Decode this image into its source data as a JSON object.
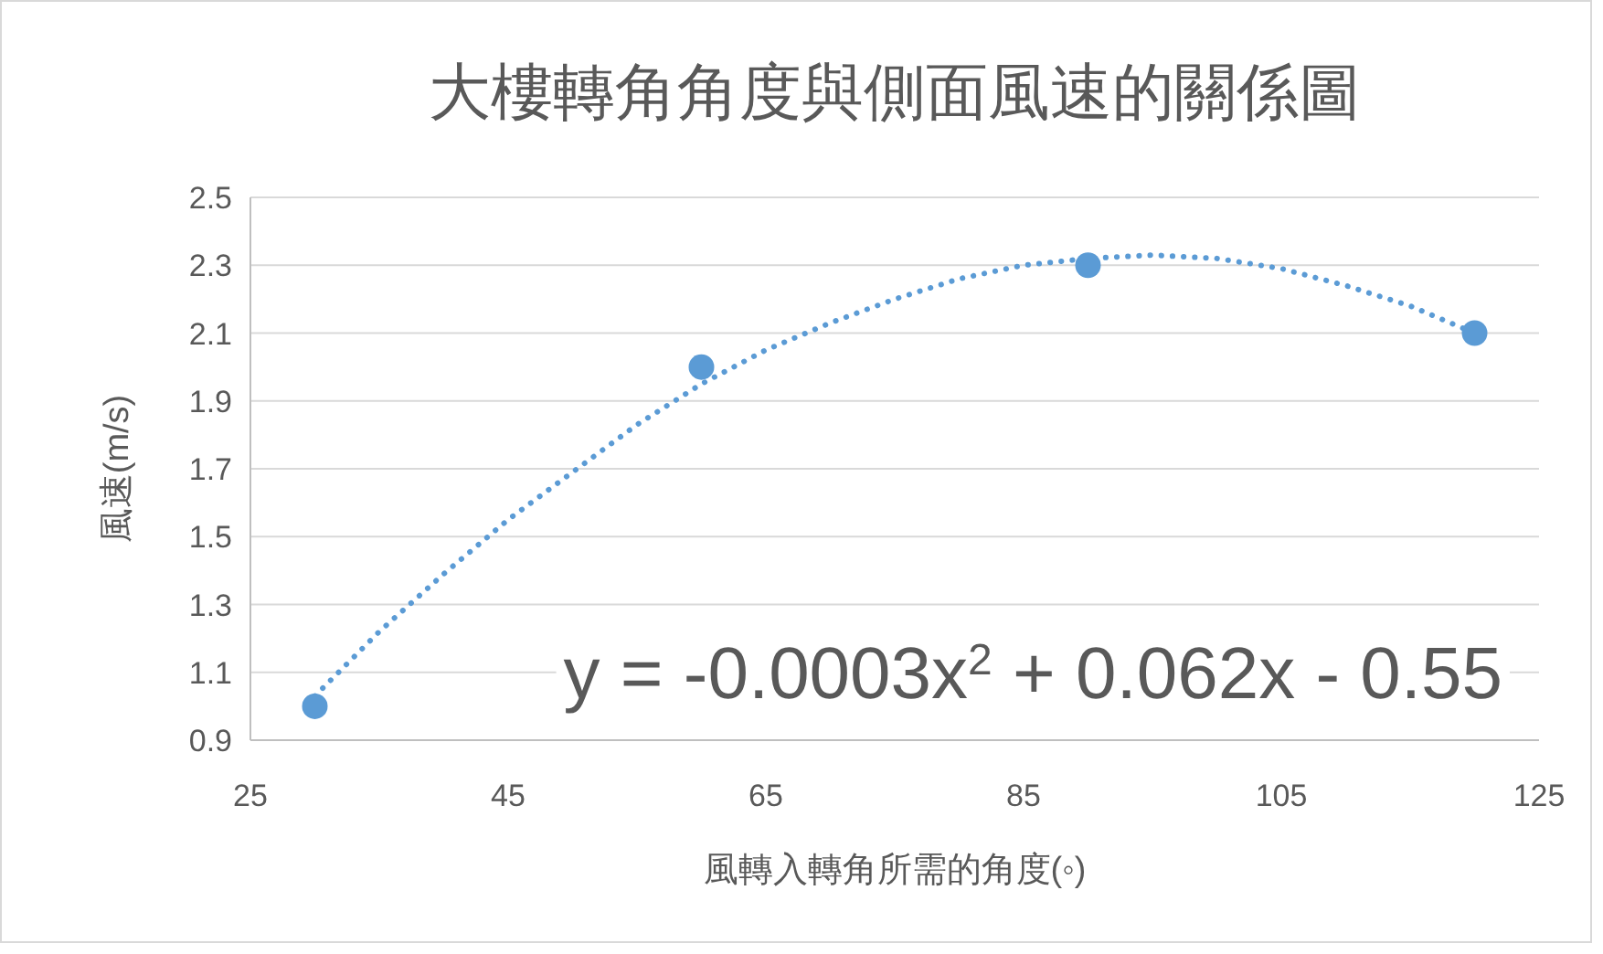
{
  "chart_data": {
    "type": "scatter",
    "title": "大樓轉角角度與側面風速的關係圖",
    "xlabel": "風轉入轉角所需的角度(◦)",
    "ylabel": "風速(m/s)",
    "annotations": [
      "y = -0.0003x$^{2}$ + 0.062x - 0.55"
    ],
    "xlim": [
      25,
      125
    ],
    "xticks": [
      25,
      45,
      65,
      85,
      105,
      125
    ],
    "ylim": [
      0.9,
      2.5
    ],
    "yticks": [
      0.9,
      1.1,
      1.3,
      1.5,
      1.7,
      1.9,
      2.1,
      2.3,
      2.5
    ],
    "grid": "y",
    "series": [
      {
        "color": "#5b9bd5",
        "marker": "circle",
        "x": [
          30,
          60,
          90,
          120
        ],
        "values": [
          1.0,
          2.0,
          2.3,
          2.1
        ]
      },
      {
        "type": "line",
        "color": "#5b9bd5",
        "marker": "none",
        "line_style": "dotted",
        "x": [
          30,
          35,
          40,
          45,
          50,
          55,
          60,
          65,
          70,
          75,
          80,
          85,
          90,
          95,
          100,
          105,
          110,
          115,
          120
        ],
        "values": [
          1.03,
          1.22,
          1.39,
          1.55,
          1.69,
          1.83,
          1.95,
          2.05,
          2.13,
          2.2,
          2.26,
          2.3,
          2.32,
          2.33,
          2.32,
          2.29,
          2.24,
          2.18,
          2.1
        ]
      }
    ]
  }
}
